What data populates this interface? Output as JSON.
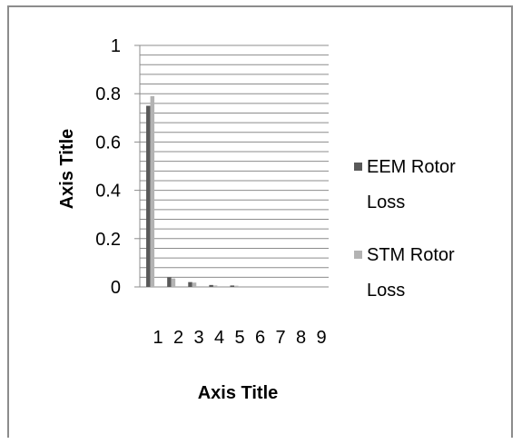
{
  "chart_data": {
    "type": "bar",
    "categories": [
      "1",
      "2",
      "3",
      "4",
      "5",
      "6",
      "7",
      "8",
      "9"
    ],
    "series": [
      {
        "name": "EEM Rotor Loss",
        "values": [
          0.75,
          0.04,
          0.02,
          0.008,
          0.006,
          0,
          0,
          0,
          0
        ]
      },
      {
        "name": "STM Rotor Loss",
        "values": [
          0.79,
          0.035,
          0.018,
          0.006,
          0.005,
          0,
          0,
          0,
          0
        ]
      }
    ],
    "xlabel": "Axis Title",
    "ylabel": "Axis Title",
    "ylim": [
      0,
      1
    ],
    "yticks": [
      "0",
      "0.2",
      "0.4",
      "0.6",
      "0.8",
      "1"
    ],
    "ytick_values": [
      0,
      0.2,
      0.4,
      0.6,
      0.8,
      1
    ],
    "minor_grid_step": 0.04,
    "grid": true,
    "legend_position": "right",
    "colors": {
      "EEM Rotor Loss": "#595959",
      "STM Rotor Loss": "#b3b3b3",
      "grid": "#8c8c8c"
    },
    "legend": [
      {
        "line1": "EEM Rotor",
        "line2": "Loss"
      },
      {
        "line1": "STM Rotor",
        "line2": "Loss"
      }
    ]
  }
}
